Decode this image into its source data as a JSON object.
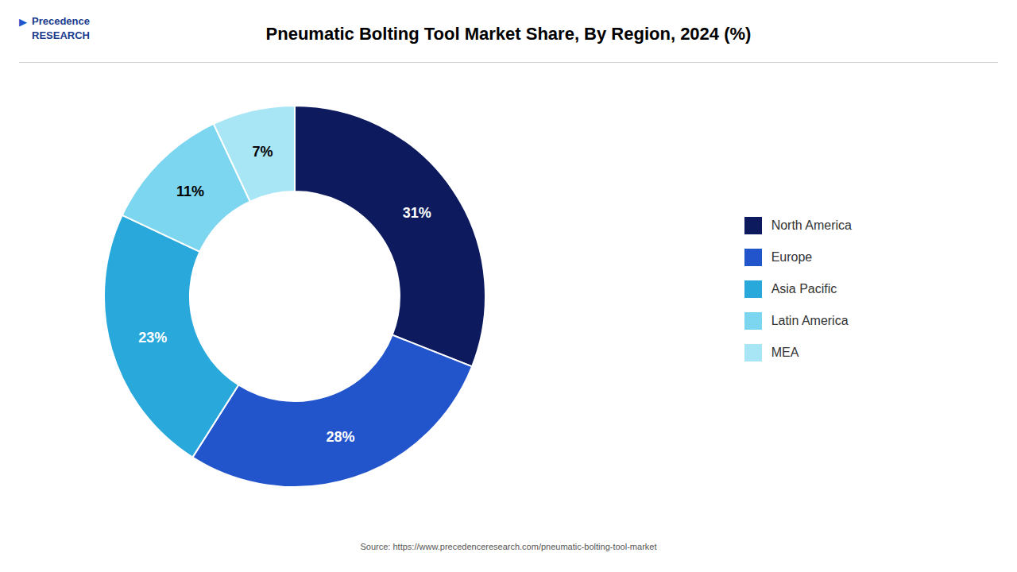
{
  "chart_data": {
    "type": "pie",
    "title": "Pneumatic Bolting Tool Market  Share, By Region, 2024 (%)",
    "categories": [
      "North America",
      "Europe",
      "Asia Pacific",
      "Latin America",
      "MEA"
    ],
    "values": [
      31,
      28,
      23,
      11,
      7
    ],
    "value_labels": [
      "31%",
      "28%",
      "23%",
      "11%",
      "7%"
    ],
    "colors": [
      "#0d1b5e",
      "#2255cc",
      "#29a8dc",
      "#7dd6ef",
      "#a8e6f5"
    ],
    "data_labels": true,
    "legend": "right",
    "annotations": [
      "▶",
      "Precedence\nRESEARCH",
      "Source: https://www.precedenceresearch.com/pneumatic-bolting-tool-market"
    ]
  }
}
